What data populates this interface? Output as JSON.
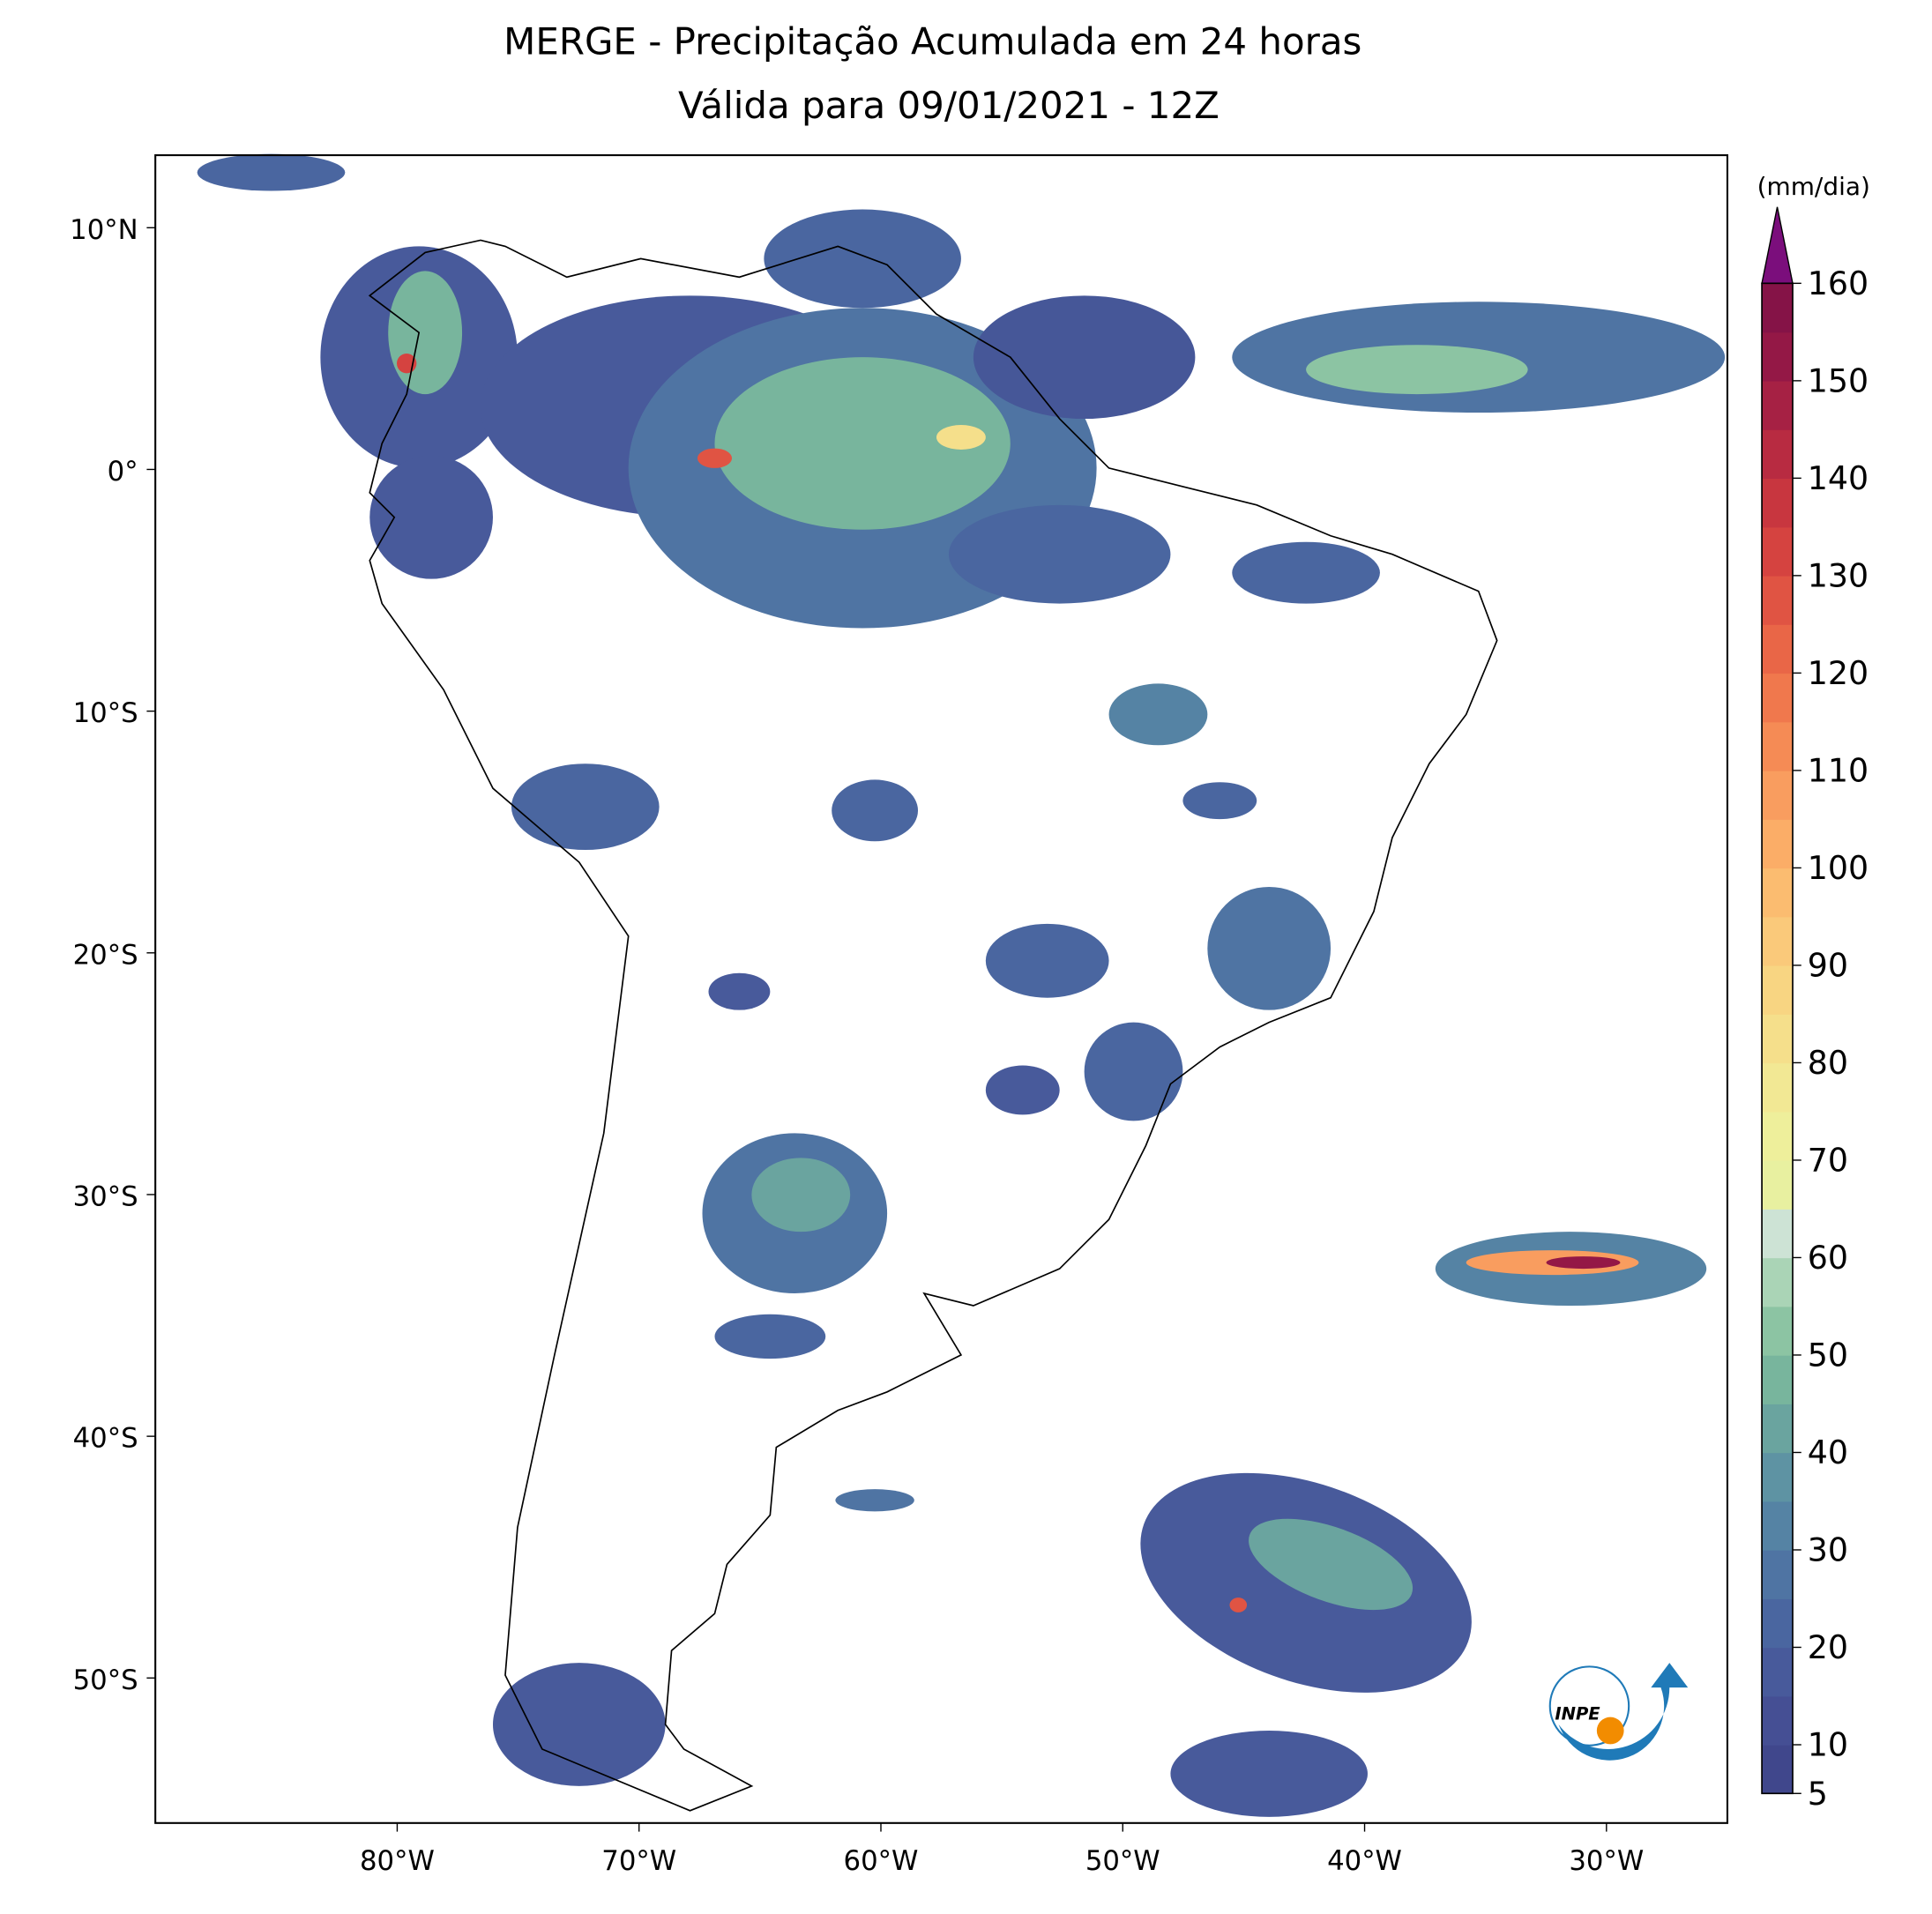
{
  "chart_data": {
    "type": "contour-map",
    "title": "MERGE - Precipitação Acumulada em 24 horas",
    "subtitle": "Válida para 09/01/2021 - 12Z",
    "xlim": [
      -90,
      -25
    ],
    "ylim": [
      -56,
      13
    ],
    "xticks": [
      {
        "value": -80,
        "label": "80°W"
      },
      {
        "value": -70,
        "label": "70°W"
      },
      {
        "value": -60,
        "label": "60°W"
      },
      {
        "value": -50,
        "label": "50°W"
      },
      {
        "value": -40,
        "label": "40°W"
      },
      {
        "value": -30,
        "label": "30°W"
      }
    ],
    "yticks": [
      {
        "value": 10,
        "label": "10°N"
      },
      {
        "value": 0,
        "label": "0°"
      },
      {
        "value": -10,
        "label": "10°S"
      },
      {
        "value": -20,
        "label": "20°S"
      },
      {
        "value": -30,
        "label": "30°S"
      },
      {
        "value": -40,
        "label": "40°S"
      },
      {
        "value": -50,
        "label": "50°S"
      }
    ],
    "colorbar": {
      "label": "(mm/dia)",
      "levels": [
        5,
        10,
        15,
        20,
        25,
        30,
        35,
        40,
        45,
        50,
        55,
        60,
        65,
        70,
        75,
        80,
        85,
        90,
        95,
        100,
        105,
        110,
        115,
        120,
        125,
        130,
        135,
        140,
        145,
        150,
        155,
        160
      ],
      "colors": [
        "#40478c",
        "#454f94",
        "#485a9b",
        "#4a66a0",
        "#4f74a3",
        "#5583a4",
        "#5e93a3",
        "#6aa49f",
        "#78b59d",
        "#8cc4a3",
        "#aad4b6",
        "#cde3d5",
        "#e8f0a0",
        "#eeef9b",
        "#f2e894",
        "#f5df8b",
        "#f8d582",
        "#fac97a",
        "#fbbc70",
        "#fbad67",
        "#f99d5f",
        "#f58b55",
        "#f0784d",
        "#e96647",
        "#e05443",
        "#d54340",
        "#c8363f",
        "#b82b41",
        "#a62144",
        "#941846",
        "#851347"
      ],
      "over_color": "#7b0e7c",
      "ticks": [
        5,
        10,
        20,
        30,
        40,
        50,
        60,
        70,
        80,
        90,
        100,
        110,
        120,
        130,
        140,
        150,
        160
      ]
    },
    "logo_text": "INPE"
  }
}
